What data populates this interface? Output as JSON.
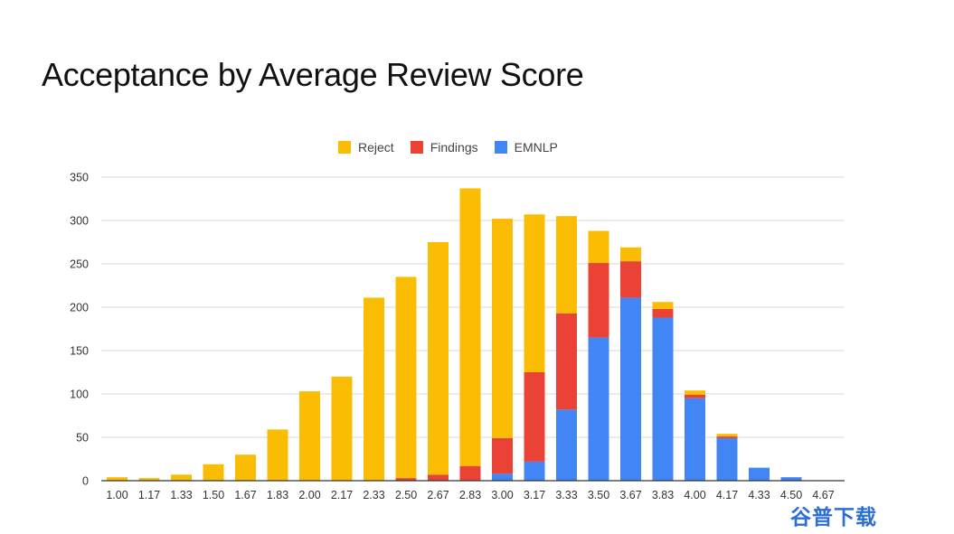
{
  "title": "Acceptance by Average Review Score",
  "watermark": "谷普下载",
  "colors": {
    "Reject": "#FBBC04",
    "Findings": "#EA4335",
    "EMNLP": "#4285F4"
  },
  "chart_data": {
    "type": "bar",
    "stacked": true,
    "title": "Acceptance by Average Review Score",
    "xlabel": "",
    "ylabel": "",
    "ylim": [
      0,
      350
    ],
    "yticks": [
      0,
      50,
      100,
      150,
      200,
      250,
      300,
      350
    ],
    "grid": true,
    "legend_position": "top",
    "categories": [
      "1.00",
      "1.17",
      "1.33",
      "1.50",
      "1.67",
      "1.83",
      "2.00",
      "2.17",
      "2.33",
      "2.50",
      "2.67",
      "2.83",
      "3.00",
      "3.17",
      "3.33",
      "3.50",
      "3.67",
      "3.83",
      "4.00",
      "4.17",
      "4.33",
      "4.50",
      "4.67"
    ],
    "series": [
      {
        "name": "EMNLP",
        "values": [
          0,
          0,
          0,
          0,
          0,
          0,
          0,
          0,
          0,
          0,
          0,
          0,
          8,
          22,
          82,
          165,
          211,
          188,
          95,
          49,
          15,
          4,
          0
        ]
      },
      {
        "name": "Findings",
        "values": [
          0,
          0,
          0,
          0,
          0,
          0,
          0,
          0,
          0,
          3,
          7,
          17,
          41,
          103,
          111,
          86,
          42,
          10,
          4,
          2,
          0,
          0,
          0
        ]
      },
      {
        "name": "Reject",
        "values": [
          4,
          3,
          7,
          19,
          30,
          59,
          103,
          120,
          211,
          232,
          268,
          320,
          253,
          182,
          112,
          37,
          16,
          8,
          5,
          3,
          0,
          0,
          0
        ]
      }
    ]
  }
}
